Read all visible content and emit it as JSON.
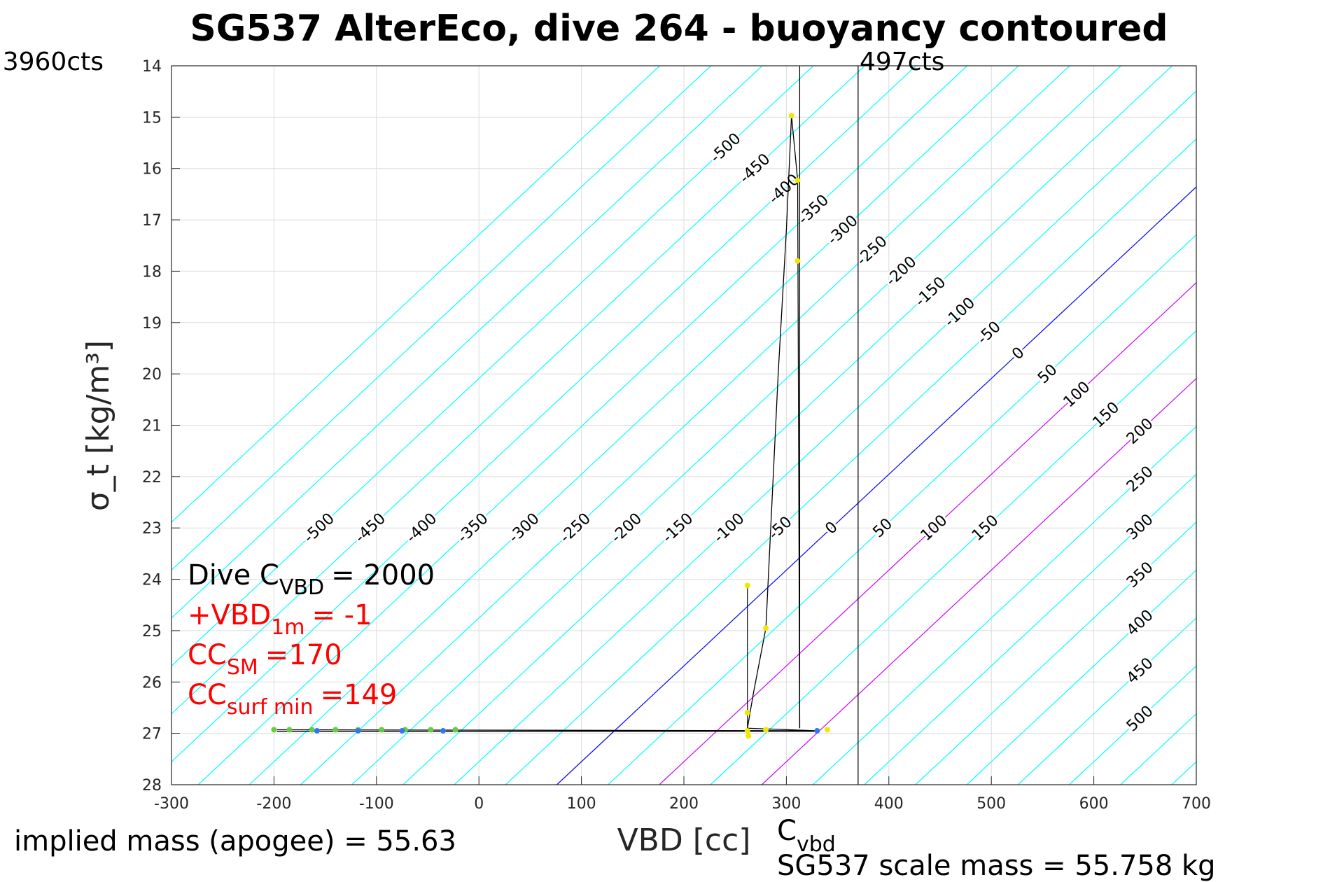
{
  "chart_data": {
    "type": "line",
    "title": "SG537 AlterEco, dive 264 - buoyancy contoured",
    "xlabel": "VBD [cc]",
    "ylabel": "σ_t [kg/m³]",
    "xlim": [
      -300,
      700
    ],
    "ylim": [
      28,
      14
    ],
    "xticks": [
      -300,
      -200,
      -100,
      0,
      100,
      200,
      300,
      400,
      500,
      600,
      700
    ],
    "yticks": [
      14,
      15,
      16,
      17,
      18,
      19,
      20,
      21,
      22,
      23,
      24,
      25,
      26,
      27,
      28
    ],
    "grid": true,
    "contour_levels": [
      -650,
      -600,
      -550,
      -500,
      -450,
      -400,
      -350,
      -300,
      -250,
      -200,
      -150,
      -100,
      -50,
      0,
      50,
      100,
      150,
      200,
      250,
      300,
      350,
      400,
      450,
      500,
      550,
      600,
      650
    ],
    "contour_labels_lower": [
      -500,
      -450,
      -400,
      -350,
      -300,
      -250,
      -200,
      -150,
      -100,
      -50,
      0,
      50,
      100,
      150
    ],
    "contour_labels_upper": [
      -500,
      -450,
      -400,
      -350,
      -300,
      -250,
      -200,
      -150,
      -100,
      -50,
      0,
      50,
      100,
      150
    ],
    "contour_labels_right": [
      200,
      250,
      300,
      350,
      400,
      450,
      500
    ],
    "colors": {
      "contour": "#00ffff",
      "zero": "#0000ff",
      "highlight": "#cc00ff",
      "trace": "#000000",
      "yellow": "#f0e800",
      "green": "#66cc44",
      "blue": "#3377ee",
      "annot": "#ff0000"
    },
    "trace": [
      [
        -197,
        26.93
      ],
      [
        330,
        26.95
      ],
      [
        262,
        26.9
      ],
      [
        268,
        26.2
      ],
      [
        280,
        24.95
      ],
      [
        292,
        20
      ],
      [
        300,
        17.2
      ],
      [
        305,
        14.97
      ],
      [
        311,
        16.23
      ],
      [
        313,
        26.9
      ]
    ],
    "points_yellow": [
      [
        305,
        14.97
      ],
      [
        311,
        16.23
      ],
      [
        311,
        17.8
      ],
      [
        262,
        24.12
      ],
      [
        280,
        24.95
      ],
      [
        262,
        26.6
      ],
      [
        262,
        26.95
      ],
      [
        263,
        27.05
      ],
      [
        340,
        26.93
      ],
      [
        280,
        26.93
      ]
    ],
    "points_green": [
      [
        -200,
        26.93
      ],
      [
        -185,
        26.93
      ],
      [
        -163,
        26.93
      ],
      [
        -140,
        26.93
      ],
      [
        -118,
        26.93
      ],
      [
        -95,
        26.93
      ],
      [
        -72,
        26.93
      ],
      [
        -47,
        26.93
      ],
      [
        -23,
        26.93
      ]
    ],
    "points_blue": [
      [
        -158,
        26.95
      ],
      [
        -118,
        26.95
      ],
      [
        -75,
        26.95
      ],
      [
        -35,
        26.95
      ],
      [
        330,
        26.95
      ]
    ],
    "vlines": [
      {
        "x": 370,
        "y0": 14,
        "y1": 28
      },
      {
        "x": 313,
        "y0": 14,
        "y1": 26.9
      },
      {
        "x": 262,
        "y0": 24.12,
        "y1": 26.93
      }
    ],
    "annotations": {
      "top_left": "3960cts",
      "top_right": "497cts",
      "dive_c_vbd": "Dive C",
      "dive_c_vbd_sub": "VBD",
      "dive_c_vbd_val": "= 2000",
      "vbd1m": "+VBD",
      "vbd1m_sub": "1m",
      "vbd1m_val": "= -1",
      "cc_sm": "CC",
      "cc_sm_sub": "SM",
      "cc_sm_val": "=170",
      "cc_surf": "CC",
      "cc_surf_sub": "surf min",
      "cc_surf_val": "=149",
      "cvbd": "C",
      "cvbd_sub": "vbd",
      "scale_mass": "SG537 scale mass = 55.758 kg",
      "implied_mass": "implied mass (apogee) = 55.63"
    }
  }
}
